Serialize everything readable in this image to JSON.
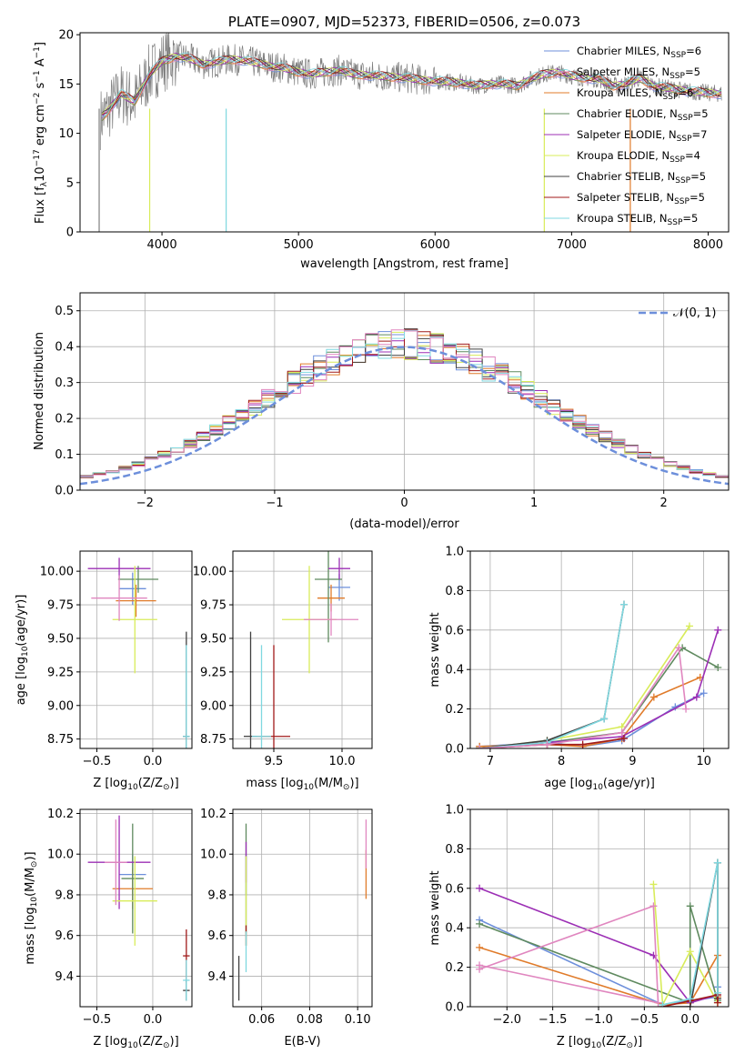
{
  "colors": {
    "c1": "#6d8fdb",
    "c2": "#e07b2a",
    "c3": "#5f8a5f",
    "c4": "#9c2fb5",
    "c5": "#d8ec5a",
    "c6": "#404040",
    "c7": "#a01a1a",
    "c8": "#7fd8e0",
    "c9": "#e086bf",
    "grey": "#7f7f7f"
  },
  "chart_data": [
    {
      "id": "spectrum",
      "type": "line",
      "title": "PLATE=0907, MJD=52373, FIBERID=0506, z=0.073",
      "xlabel": "wavelength [Angstrom, rest frame]",
      "ylabel_parts": [
        "Flux [f",
        "λ",
        "10",
        "−17",
        " erg cm",
        "−2",
        " s",
        "−1",
        " A",
        "−1",
        "]"
      ],
      "xlim": [
        3400,
        8150
      ],
      "ylim": [
        0,
        20.2
      ],
      "xticks": [
        4000,
        5000,
        6000,
        7000,
        8000
      ],
      "yticks": [
        0,
        5,
        10,
        15,
        20
      ],
      "grid": false,
      "legend_position": "upper-right",
      "legend": [
        {
          "name": "Chabrier MILES, N",
          "sub": "SSP",
          "suffix": "=6",
          "color": "c1"
        },
        {
          "name": "Salpeter MILES, N",
          "sub": "SSP",
          "suffix": "=5",
          "color": "c9"
        },
        {
          "name": "Kroupa MILES, N",
          "sub": "SSP",
          "suffix": "=6",
          "color": "c2"
        },
        {
          "name": "Chabrier ELODIE, N",
          "sub": "SSP",
          "suffix": "=5",
          "color": "c3"
        },
        {
          "name": "Salpeter ELODIE, N",
          "sub": "SSP",
          "suffix": "=7",
          "color": "c4"
        },
        {
          "name": "Kroupa ELODIE, N",
          "sub": "SSP",
          "suffix": "=4",
          "color": "c5"
        },
        {
          "name": "Chabrier STELIB, N",
          "sub": "SSP",
          "suffix": "=5",
          "color": "c6"
        },
        {
          "name": "Salpeter STELIB, N",
          "sub": "SSP",
          "suffix": "=5",
          "color": "c7"
        },
        {
          "name": "Kroupa STELIB, N",
          "sub": "SSP",
          "suffix": "=5",
          "color": "c8"
        }
      ],
      "data_wave": [
        3550,
        3600,
        3700,
        3800,
        3900,
        4000,
        4100,
        4200,
        4300,
        4400,
        4500,
        4600,
        4700,
        4800,
        4900,
        5000,
        5100,
        5200,
        5300,
        5400,
        5500,
        5600,
        5700,
        5800,
        5900,
        6000,
        6100,
        6200,
        6300,
        6400,
        6500,
        6600,
        6700,
        6800,
        6900,
        7000,
        7100,
        7200,
        7300,
        7400,
        7500,
        7600,
        7700,
        7800,
        7900,
        8000,
        8100
      ],
      "data_flux": [
        11.5,
        12.2,
        14.0,
        13.2,
        15.8,
        17.3,
        17.8,
        17.6,
        17.0,
        17.2,
        17.5,
        17.4,
        17.1,
        16.8,
        16.6,
        16.2,
        16.0,
        16.2,
        16.4,
        16.0,
        15.9,
        15.8,
        15.7,
        15.6,
        15.4,
        15.3,
        15.2,
        15.1,
        14.8,
        15.0,
        15.0,
        14.8,
        15.5,
        16.0,
        16.2,
        15.8,
        15.6,
        15.5,
        14.8,
        15.0,
        15.6,
        14.8,
        14.6,
        14.4,
        14.2,
        14.1,
        14.0
      ],
      "dips": [
        {
          "x": 3540,
          "ylow": 0,
          "color": "grey"
        },
        {
          "x": 3910,
          "ylow": 0,
          "color": "c5"
        },
        {
          "x": 4470,
          "ylow": 0,
          "color": "c8"
        },
        {
          "x": 6800,
          "ylow": 0,
          "color": "c5"
        },
        {
          "x": 7430,
          "ylow": 0,
          "color": "c2"
        }
      ]
    },
    {
      "id": "residual",
      "type": "histogram",
      "xlabel": "(data-model)/error",
      "ylabel": "Normed distribution",
      "xlim": [
        -2.5,
        2.5
      ],
      "ylim": [
        0,
        0.55
      ],
      "xticks": [
        -2,
        -1,
        0,
        1,
        2
      ],
      "yticks": [
        0.0,
        0.1,
        0.2,
        0.3,
        0.4,
        0.5
      ],
      "grid": true,
      "legend_position": "upper-right",
      "legend": [
        {
          "name": "𝒩(0, 1)",
          "style": "dashed",
          "color": "c1"
        }
      ],
      "bin_width": 0.1,
      "series_colors": [
        "c1",
        "c2",
        "c3",
        "c4",
        "c5",
        "c6",
        "c7",
        "c8",
        "c9"
      ]
    },
    {
      "id": "age-Z",
      "type": "errorbar",
      "xlabel_parts": [
        "Z [log",
        "10",
        "(Z/Z",
        "⊙",
        ")]"
      ],
      "ylabel_parts": [
        "age  [log",
        "10",
        "(age/yr)]"
      ],
      "xlim": [
        -0.65,
        0.35
      ],
      "ylim": [
        8.68,
        10.15
      ],
      "xticks": [
        -0.5,
        0.0
      ],
      "xtick_labels": [
        "−0.5",
        "0.0"
      ],
      "yticks": [
        8.75,
        9.0,
        9.25,
        9.5,
        9.75,
        10.0
      ],
      "ytick_labels": [
        "8.75",
        "9.00",
        "9.25",
        "9.50",
        "9.75",
        "10.00"
      ],
      "grid": true,
      "points": [
        {
          "x": -0.18,
          "y": 9.87,
          "xerr": 0.12,
          "yerr": 0.12,
          "color": "c1"
        },
        {
          "x": -0.15,
          "y": 9.78,
          "xerr": 0.18,
          "yerr": 0.12,
          "color": "c2"
        },
        {
          "x": -0.13,
          "y": 9.94,
          "xerr": 0.18,
          "yerr": 0.1,
          "color": "c3"
        },
        {
          "x": -0.3,
          "y": 10.02,
          "xerr": 0.28,
          "yerr": 0.08,
          "color": "c4"
        },
        {
          "x": -0.16,
          "y": 9.64,
          "xerr": 0.2,
          "yerr": 0.4,
          "color": "c5"
        },
        {
          "x": 0.3,
          "y": 8.77,
          "xerr": 0.03,
          "yerr": 0.78,
          "color": "c6"
        },
        {
          "x": 0.3,
          "y": 8.77,
          "xerr": 0.02,
          "yerr": 0.02,
          "color": "c7"
        },
        {
          "x": 0.3,
          "y": 8.77,
          "xerr": 0.03,
          "yerr": 0.68,
          "color": "c8"
        },
        {
          "x": -0.3,
          "y": 9.8,
          "xerr": 0.25,
          "yerr": 0.17,
          "color": "c9"
        }
      ]
    },
    {
      "id": "age-mass",
      "type": "errorbar",
      "xlabel_parts": [
        "mass [log",
        "10",
        "(M/M",
        "⊙",
        ")]"
      ],
      "ylabel_parts": [],
      "xlim": [
        9.2,
        10.22
      ],
      "ylim": [
        8.68,
        10.15
      ],
      "xticks": [
        9.5,
        10.0
      ],
      "xtick_labels": [
        "9.5",
        "10.0"
      ],
      "yticks": [
        8.75,
        9.0,
        9.25,
        9.5,
        9.75,
        10.0
      ],
      "ytick_labels": [
        "8.75",
        "9.00",
        "9.25",
        "9.50",
        "9.75",
        "10.00"
      ],
      "grid": true,
      "points": [
        {
          "x": 9.98,
          "y": 9.88,
          "xerr": 0.08,
          "yerr": 0.1,
          "color": "c1"
        },
        {
          "x": 9.92,
          "y": 9.8,
          "xerr": 0.1,
          "yerr": 0.1,
          "color": "c2"
        },
        {
          "x": 9.9,
          "y": 9.94,
          "xerr": 0.1,
          "yerr": 0.47,
          "color": "c3"
        },
        {
          "x": 9.98,
          "y": 10.02,
          "xerr": 0.08,
          "yerr": 0.08,
          "color": "c4"
        },
        {
          "x": 9.76,
          "y": 9.64,
          "xerr": 0.2,
          "yerr": 0.4,
          "color": "c5"
        },
        {
          "x": 9.33,
          "y": 8.77,
          "xerr": 0.05,
          "yerr": 0.78,
          "color": "c6"
        },
        {
          "x": 9.5,
          "y": 8.77,
          "xerr": 0.12,
          "yerr": 0.68,
          "color": "c7"
        },
        {
          "x": 9.41,
          "y": 8.77,
          "xerr": 0.07,
          "yerr": 0.68,
          "color": "c8"
        },
        {
          "x": 9.92,
          "y": 9.64,
          "xerr": 0.2,
          "yerr": 0.12,
          "color": "c9"
        }
      ]
    },
    {
      "id": "massweight-age",
      "type": "line",
      "xlabel_parts": [
        "age  [log",
        "10",
        "(age/yr)]"
      ],
      "ylabel": "mass weight",
      "xlim": [
        6.72,
        10.35
      ],
      "ylim": [
        0,
        1.0
      ],
      "xticks": [
        7,
        8,
        9,
        10
      ],
      "xtick_labels": [
        "7",
        "8",
        "9",
        "10"
      ],
      "yticks": [
        0.0,
        0.2,
        0.4,
        0.6,
        0.8,
        1.0
      ],
      "ytick_labels": [
        "0.0",
        "0.2",
        "0.4",
        "0.6",
        "0.8",
        "1.0"
      ],
      "grid": true,
      "series": [
        {
          "color": "c1",
          "x": [
            6.85,
            7.8,
            8.3,
            8.85,
            9.6,
            10.0
          ],
          "y": [
            0.01,
            0.03,
            0.01,
            0.04,
            0.21,
            0.28
          ]
        },
        {
          "color": "c2",
          "x": [
            6.85,
            7.8,
            8.3,
            8.85,
            9.3,
            9.95
          ],
          "y": [
            0.01,
            0.02,
            0.01,
            0.05,
            0.26,
            0.36
          ]
        },
        {
          "color": "c3",
          "x": [
            6.85,
            7.8,
            8.85,
            9.7,
            10.2
          ],
          "y": [
            0.0,
            0.03,
            0.08,
            0.51,
            0.41
          ]
        },
        {
          "color": "c4",
          "x": [
            6.85,
            7.8,
            8.85,
            9.9,
            10.2
          ],
          "y": [
            0.0,
            0.03,
            0.06,
            0.26,
            0.6
          ]
        },
        {
          "color": "c5",
          "x": [
            6.85,
            7.8,
            8.85,
            9.8
          ],
          "y": [
            0.0,
            0.04,
            0.11,
            0.62
          ]
        },
        {
          "color": "c6",
          "x": [
            6.85,
            7.8,
            8.6,
            8.88
          ],
          "y": [
            0.0,
            0.04,
            0.15,
            0.73
          ]
        },
        {
          "color": "c7",
          "x": [
            6.85,
            7.8,
            8.3,
            8.88
          ],
          "y": [
            0.0,
            0.02,
            0.02,
            0.05
          ]
        },
        {
          "color": "c8",
          "x": [
            6.85,
            7.8,
            8.6,
            8.88
          ],
          "y": [
            0.0,
            0.03,
            0.15,
            0.73
          ]
        },
        {
          "color": "c9",
          "x": [
            6.85,
            7.8,
            8.85,
            9.65,
            9.75
          ],
          "y": [
            0.0,
            0.02,
            0.08,
            0.51,
            0.2
          ]
        }
      ]
    },
    {
      "id": "mass-Z",
      "type": "errorbar",
      "xlabel_parts": [
        "Z [log",
        "10",
        "(Z/Z",
        "⊙",
        ")]"
      ],
      "ylabel_parts": [
        "mass [log",
        "10",
        "(M/M",
        "⊙",
        ")]"
      ],
      "xlim": [
        -0.65,
        0.35
      ],
      "ylim": [
        9.25,
        10.22
      ],
      "xticks": [
        -0.5,
        0.0
      ],
      "xtick_labels": [
        "−0.5",
        "0.0"
      ],
      "yticks": [
        9.4,
        9.6,
        9.8,
        10.0,
        10.2
      ],
      "ytick_labels": [
        "9.4",
        "9.6",
        "9.8",
        "10.0",
        "10.2"
      ],
      "grid": true,
      "points": [
        {
          "x": -0.18,
          "y": 9.9,
          "xerr": 0.12,
          "yerr": 0.1,
          "color": "c1"
        },
        {
          "x": -0.18,
          "y": 9.83,
          "xerr": 0.18,
          "yerr": 0.1,
          "color": "c2"
        },
        {
          "x": -0.18,
          "y": 9.88,
          "xerr": 0.1,
          "yerr": 0.27,
          "color": "c3"
        },
        {
          "x": -0.3,
          "y": 9.96,
          "xerr": 0.28,
          "yerr": 0.23,
          "color": "c4"
        },
        {
          "x": -0.16,
          "y": 9.77,
          "xerr": 0.2,
          "yerr": 0.22,
          "color": "c5"
        },
        {
          "x": 0.3,
          "y": 9.33,
          "xerr": 0.03,
          "yerr": 0.05,
          "color": "c6"
        },
        {
          "x": 0.3,
          "y": 9.5,
          "xerr": 0.03,
          "yerr": 0.13,
          "color": "c7"
        },
        {
          "x": 0.3,
          "y": 9.38,
          "xerr": 0.03,
          "yerr": 0.1,
          "color": "c8"
        },
        {
          "x": -0.33,
          "y": 9.96,
          "xerr": 0.1,
          "yerr": 0.21,
          "color": "c9"
        }
      ]
    },
    {
      "id": "mass-EBV",
      "type": "errorbar",
      "xlabel_parts": [
        "E(B-V)"
      ],
      "ylabel_parts": [],
      "xlim": [
        0.048,
        0.106
      ],
      "ylim": [
        9.25,
        10.22
      ],
      "xticks": [
        0.06,
        0.08,
        0.1
      ],
      "xtick_labels": [
        "0.06",
        "0.08",
        "0.10"
      ],
      "yticks": [
        9.4,
        9.6,
        9.8,
        10.0,
        10.2
      ],
      "ytick_labels": [
        "9.4",
        "9.6",
        "9.8",
        "10.0",
        "10.2"
      ],
      "grid": true,
      "points": [
        {
          "x": 0.0535,
          "y": 9.9,
          "xerr": 0,
          "yerr": 0.1,
          "color": "c1"
        },
        {
          "x": 0.1035,
          "y": 9.9,
          "xerr": 0,
          "yerr": 0.12,
          "color": "c2"
        },
        {
          "x": 0.0535,
          "y": 9.88,
          "xerr": 0,
          "yerr": 0.27,
          "color": "c3"
        },
        {
          "x": 0.0535,
          "y": 9.96,
          "xerr": 0,
          "yerr": 0.1,
          "color": "c4"
        },
        {
          "x": 0.0535,
          "y": 9.77,
          "xerr": 0,
          "yerr": 0.22,
          "color": "c5"
        },
        {
          "x": 0.0505,
          "y": 9.39,
          "xerr": 0,
          "yerr": 0.11,
          "color": "c6"
        },
        {
          "x": 0.0535,
          "y": 9.6,
          "xerr": 0,
          "yerr": 0.05,
          "color": "c7"
        },
        {
          "x": 0.0535,
          "y": 9.52,
          "xerr": 0,
          "yerr": 0.1,
          "color": "c8"
        },
        {
          "x": 0.1035,
          "y": 10.05,
          "xerr": 0,
          "yerr": 0.12,
          "color": "c9"
        }
      ]
    },
    {
      "id": "massweight-Z",
      "type": "line",
      "xlabel_parts": [
        "Z [log",
        "10",
        "(Z/Z",
        "⊙",
        ")]"
      ],
      "ylabel": "mass weight",
      "xlim": [
        -2.4,
        0.42
      ],
      "ylim": [
        0,
        1.0
      ],
      "xticks": [
        -2.0,
        -1.5,
        -1.0,
        -0.5,
        0.0
      ],
      "xtick_labels": [
        "−2.0",
        "−1.5",
        "−1.0",
        "−0.5",
        "0.0"
      ],
      "yticks": [
        0.0,
        0.2,
        0.4,
        0.6,
        0.8,
        1.0
      ],
      "ytick_labels": [
        "0.0",
        "0.2",
        "0.4",
        "0.6",
        "0.8",
        "1.0"
      ],
      "grid": true,
      "series": [
        {
          "color": "c1",
          "x": [
            -2.3,
            -0.3,
            0.0,
            0.3,
            0.3
          ],
          "y": [
            0.44,
            0.01,
            0.03,
            0.05,
            0.1
          ]
        },
        {
          "color": "c2",
          "x": [
            -2.3,
            -0.3,
            0.0,
            0.3,
            0.3
          ],
          "y": [
            0.3,
            0.01,
            0.02,
            0.26,
            0.05
          ]
        },
        {
          "color": "c3",
          "x": [
            -2.3,
            0.0,
            0.0,
            0.3,
            0.3
          ],
          "y": [
            0.42,
            0.02,
            0.51,
            0.03,
            0.73
          ]
        },
        {
          "color": "c4",
          "x": [
            -2.3,
            -0.4,
            0.0,
            0.3
          ],
          "y": [
            0.6,
            0.26,
            0.02,
            0.06
          ]
        },
        {
          "color": "c5",
          "x": [
            -0.4,
            -0.3,
            0.0,
            0.3
          ],
          "y": [
            0.62,
            0.01,
            0.28,
            0.02
          ]
        },
        {
          "color": "c6",
          "x": [
            -0.3,
            0.0,
            0.3,
            0.3
          ],
          "y": [
            0.0,
            0.0,
            0.73,
            0.04
          ]
        },
        {
          "color": "c7",
          "x": [
            -0.3,
            0.0,
            0.3,
            0.3
          ],
          "y": [
            0.0,
            0.03,
            0.06,
            0.02
          ]
        },
        {
          "color": "c8",
          "x": [
            -0.3,
            0.0,
            0.3,
            0.3
          ],
          "y": [
            0.01,
            0.04,
            0.73,
            0.07
          ]
        },
        {
          "color": "c9",
          "x": [
            -2.3,
            -0.4,
            -0.35,
            -2.3
          ],
          "y": [
            0.19,
            0.51,
            0.02,
            0.21
          ]
        }
      ]
    }
  ]
}
